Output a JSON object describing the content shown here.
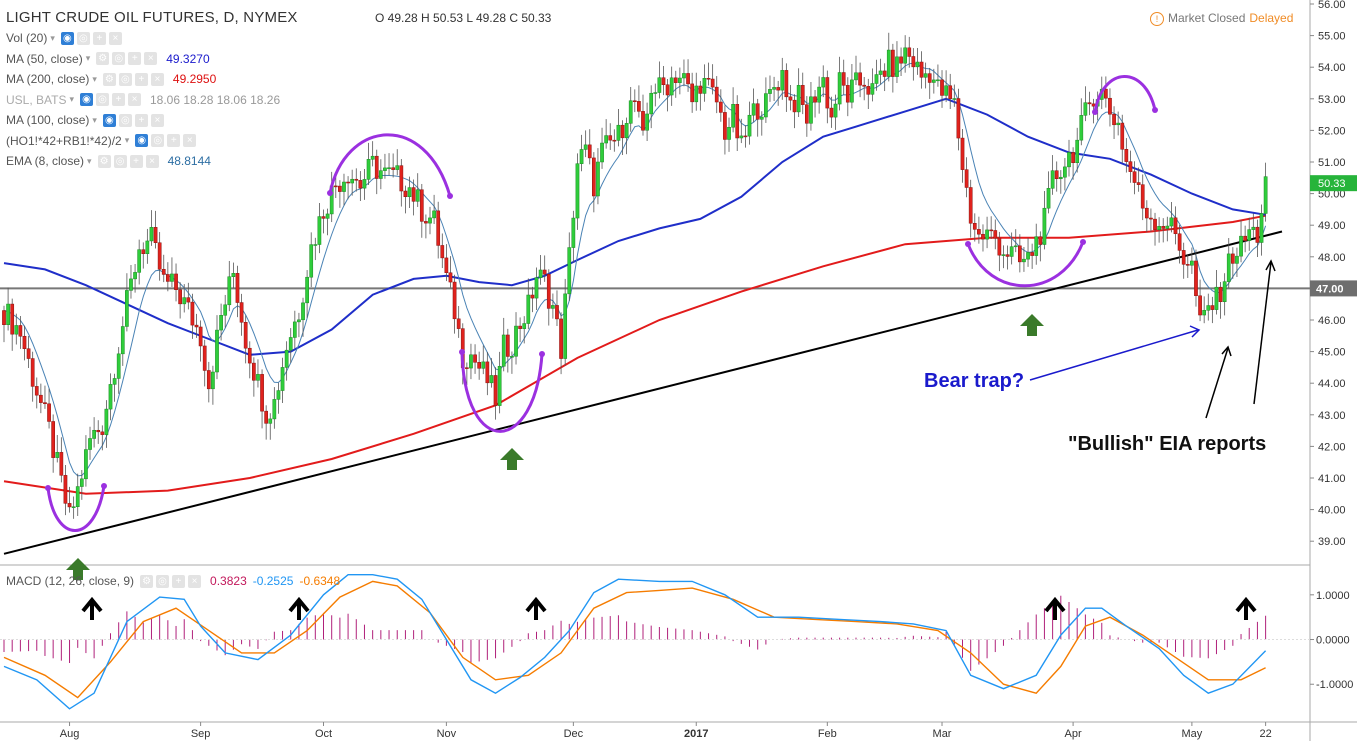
{
  "header": {
    "title": "LIGHT CRUDE OIL FUTURES, D, NYMEX",
    "ohlc": "O 49.28  H 50.53  L 49.28  C 50.33",
    "status_text": "Market Closed",
    "delayed": "Delayed"
  },
  "legend": [
    {
      "label": "Vol (20)",
      "value": "",
      "color": "#555555",
      "eye": true
    },
    {
      "label": "MA (50, close)",
      "value": "49.3270",
      "color": "#1a1acc",
      "eye": false
    },
    {
      "label": "MA (200, close)",
      "value": "49.2950",
      "color": "#dd1111",
      "eye": false
    },
    {
      "label": "USL, BATS",
      "value": "18.06 18.28 18.06 18.26",
      "color": "#999999",
      "eye": true
    },
    {
      "label": "MA (100, close)",
      "value": "",
      "color": "#555555",
      "eye": true
    },
    {
      "label": "(HO1!*42+RB1!*42)/2",
      "value": "",
      "color": "#555555",
      "eye": true
    },
    {
      "label": "EMA (8, close)",
      "value": "48.8144",
      "color": "#2d6ea3",
      "eye": false
    }
  ],
  "macd_legend": {
    "label": "MACD (12, 26, close, 9)",
    "hist": "0.3823",
    "macd": "-0.2525",
    "signal": "-0.6348"
  },
  "annotations": {
    "bear_trap": "Bear trap?",
    "eia": "\"Bullish\" EIA reports"
  },
  "chart_data": {
    "type": "candlestick",
    "title": "LIGHT CRUDE OIL FUTURES, D, NYMEX",
    "ylim": [
      38.5,
      56.0
    ],
    "y_ticks": [
      "39.00",
      "40.00",
      "41.00",
      "42.00",
      "43.00",
      "44.00",
      "45.00",
      "46.00",
      "47.00",
      "48.00",
      "49.00",
      "50.00",
      "51.00",
      "52.00",
      "53.00",
      "54.00",
      "55.00",
      "56.00"
    ],
    "y_tick_values": [
      39,
      40,
      41,
      42,
      43,
      44,
      45,
      46,
      47,
      48,
      49,
      50,
      51,
      52,
      53,
      54,
      55,
      56
    ],
    "x_ticks": [
      "Aug",
      "Sep",
      "Oct",
      "Nov",
      "Dec",
      "2017",
      "Feb",
      "Mar",
      "Apr",
      "May",
      "22"
    ],
    "x_tick_index": [
      16,
      48,
      78,
      108,
      139,
      169,
      201,
      229,
      261,
      290,
      308
    ],
    "horizontal_line": {
      "value": 47.0,
      "label": "47.00"
    },
    "last_price": {
      "value": 50.33,
      "label": "50.33"
    },
    "price_path": [
      [
        0,
        46.3
      ],
      [
        4,
        45.6
      ],
      [
        7,
        44.2
      ],
      [
        11,
        42.5
      ],
      [
        14,
        40.8
      ],
      [
        16,
        39.7
      ],
      [
        18,
        40.6
      ],
      [
        21,
        42.2
      ],
      [
        24,
        42.7
      ],
      [
        27,
        44.6
      ],
      [
        30,
        46.5
      ],
      [
        33,
        48.3
      ],
      [
        36,
        48.5
      ],
      [
        39,
        47.2
      ],
      [
        42,
        47.0
      ],
      [
        45,
        46.3
      ],
      [
        48,
        45.5
      ],
      [
        50,
        44.0
      ],
      [
        53,
        46.1
      ],
      [
        56,
        47.5
      ],
      [
        59,
        45.4
      ],
      [
        62,
        44.0
      ],
      [
        64,
        43.1
      ],
      [
        66,
        43.4
      ],
      [
        69,
        45.2
      ],
      [
        72,
        46.3
      ],
      [
        75,
        48.3
      ],
      [
        78,
        49.5
      ],
      [
        81,
        50.3
      ],
      [
        84,
        50.7
      ],
      [
        87,
        50.3
      ],
      [
        90,
        50.9
      ],
      [
        93,
        50.6
      ],
      [
        96,
        50.5
      ],
      [
        99,
        50.2
      ],
      [
        102,
        49.5
      ],
      [
        105,
        49.1
      ],
      [
        108,
        47.3
      ],
      [
        110,
        46.3
      ],
      [
        112,
        44.9
      ],
      [
        114,
        44.9
      ],
      [
        116,
        44.5
      ],
      [
        118,
        44.1
      ],
      [
        120,
        43.5
      ],
      [
        122,
        45.1
      ],
      [
        124,
        45.3
      ],
      [
        126,
        45.9
      ],
      [
        128,
        46.4
      ],
      [
        130,
        47.4
      ],
      [
        132,
        47.2
      ],
      [
        134,
        46.4
      ],
      [
        136,
        45.1
      ],
      [
        138,
        48.0
      ],
      [
        140,
        51.0
      ],
      [
        142,
        51.3
      ],
      [
        144,
        50.3
      ],
      [
        146,
        51.3
      ],
      [
        148,
        51.6
      ],
      [
        150,
        51.8
      ],
      [
        152,
        52.6
      ],
      [
        154,
        52.9
      ],
      [
        156,
        51.6
      ],
      [
        158,
        53.4
      ],
      [
        160,
        53.3
      ],
      [
        162,
        53.5
      ],
      [
        164,
        53.8
      ],
      [
        166,
        53.6
      ],
      [
        168,
        52.9
      ],
      [
        170,
        53.6
      ],
      [
        172,
        53.3
      ],
      [
        174,
        52.9
      ],
      [
        176,
        52.0
      ],
      [
        178,
        52.4
      ],
      [
        180,
        51.4
      ],
      [
        182,
        52.3
      ],
      [
        184,
        52.8
      ],
      [
        186,
        52.8
      ],
      [
        188,
        53.4
      ],
      [
        190,
        53.8
      ],
      [
        192,
        52.9
      ],
      [
        194,
        53.0
      ],
      [
        196,
        52.4
      ],
      [
        198,
        53.2
      ],
      [
        200,
        53.6
      ],
      [
        202,
        52.4
      ],
      [
        204,
        53.5
      ],
      [
        206,
        53.1
      ],
      [
        208,
        53.4
      ],
      [
        210,
        53.6
      ],
      [
        212,
        53.2
      ],
      [
        214,
        53.8
      ],
      [
        216,
        54.1
      ],
      [
        218,
        54.0
      ],
      [
        220,
        54.5
      ],
      [
        222,
        54.2
      ],
      [
        224,
        53.7
      ],
      [
        226,
        53.9
      ],
      [
        228,
        53.3
      ],
      [
        230,
        53.1
      ],
      [
        232,
        52.8
      ],
      [
        234,
        50.9
      ],
      [
        236,
        49.3
      ],
      [
        238,
        48.6
      ],
      [
        240,
        48.7
      ],
      [
        242,
        48.6
      ],
      [
        244,
        48.2
      ],
      [
        246,
        48.1
      ],
      [
        248,
        47.8
      ],
      [
        250,
        47.9
      ],
      [
        252,
        48.5
      ],
      [
        254,
        49.1
      ],
      [
        256,
        50.4
      ],
      [
        258,
        50.8
      ],
      [
        260,
        51.2
      ],
      [
        262,
        51.6
      ],
      [
        264,
        52.5
      ],
      [
        266,
        53.2
      ],
      [
        268,
        53.2
      ],
      [
        270,
        52.6
      ],
      [
        272,
        52.2
      ],
      [
        274,
        51.0
      ],
      [
        276,
        50.4
      ],
      [
        278,
        49.6
      ],
      [
        280,
        49.3
      ],
      [
        282,
        49.1
      ],
      [
        284,
        49.1
      ],
      [
        286,
        48.7
      ],
      [
        288,
        48.0
      ],
      [
        290,
        47.7
      ],
      [
        292,
        45.8
      ],
      [
        294,
        46.4
      ],
      [
        296,
        46.6
      ],
      [
        298,
        47.4
      ],
      [
        300,
        48.1
      ],
      [
        302,
        48.3
      ],
      [
        304,
        48.8
      ],
      [
        306,
        48.7
      ],
      [
        308,
        50.33
      ]
    ],
    "ma50_path": [
      [
        0,
        47.8
      ],
      [
        10,
        47.6
      ],
      [
        20,
        47.1
      ],
      [
        30,
        46.5
      ],
      [
        40,
        45.9
      ],
      [
        50,
        45.4
      ],
      [
        60,
        44.9
      ],
      [
        70,
        45.0
      ],
      [
        80,
        45.7
      ],
      [
        90,
        46.8
      ],
      [
        100,
        47.3
      ],
      [
        108,
        47.4
      ],
      [
        116,
        47.2
      ],
      [
        124,
        47.1
      ],
      [
        132,
        47.4
      ],
      [
        140,
        47.9
      ],
      [
        150,
        48.5
      ],
      [
        160,
        48.9
      ],
      [
        170,
        49.2
      ],
      [
        180,
        49.9
      ],
      [
        190,
        51.0
      ],
      [
        200,
        51.8
      ],
      [
        210,
        52.2
      ],
      [
        220,
        52.6
      ],
      [
        230,
        53.0
      ],
      [
        240,
        52.5
      ],
      [
        250,
        51.8
      ],
      [
        260,
        51.3
      ],
      [
        270,
        51.1
      ],
      [
        280,
        50.6
      ],
      [
        290,
        50.0
      ],
      [
        300,
        49.5
      ],
      [
        308,
        49.33
      ]
    ],
    "ma200_path": [
      [
        0,
        40.9
      ],
      [
        20,
        40.5
      ],
      [
        40,
        40.6
      ],
      [
        60,
        41.0
      ],
      [
        80,
        41.6
      ],
      [
        100,
        42.4
      ],
      [
        120,
        43.3
      ],
      [
        140,
        44.8
      ],
      [
        160,
        46.0
      ],
      [
        180,
        46.9
      ],
      [
        200,
        47.7
      ],
      [
        220,
        48.4
      ],
      [
        240,
        48.6
      ],
      [
        260,
        48.6
      ],
      [
        280,
        48.8
      ],
      [
        300,
        49.1
      ],
      [
        308,
        49.3
      ]
    ],
    "trendline": {
      "from": [
        0,
        38.6
      ],
      "to": [
        312,
        48.8
      ]
    },
    "macd": {
      "ylim": [
        -1.8,
        1.6
      ],
      "y_ticks": [
        "1.0000",
        "0.0000",
        "-1.0000"
      ],
      "y_tick_values": [
        1.0,
        0.0,
        -1.0
      ],
      "macd_path": [
        [
          0,
          -0.6
        ],
        [
          8,
          -0.9
        ],
        [
          16,
          -1.55
        ],
        [
          22,
          -1.2
        ],
        [
          30,
          0.4
        ],
        [
          38,
          0.95
        ],
        [
          44,
          0.9
        ],
        [
          48,
          0.3
        ],
        [
          54,
          -0.3
        ],
        [
          62,
          -0.45
        ],
        [
          70,
          0.1
        ],
        [
          78,
          1.0
        ],
        [
          84,
          1.45
        ],
        [
          90,
          1.45
        ],
        [
          96,
          1.35
        ],
        [
          102,
          0.9
        ],
        [
          108,
          0.0
        ],
        [
          114,
          -0.9
        ],
        [
          120,
          -1.2
        ],
        [
          126,
          -0.85
        ],
        [
          132,
          -0.4
        ],
        [
          138,
          0.2
        ],
        [
          144,
          1.05
        ],
        [
          150,
          1.35
        ],
        [
          160,
          1.3
        ],
        [
          168,
          1.3
        ],
        [
          176,
          1.0
        ],
        [
          184,
          0.5
        ],
        [
          194,
          0.5
        ],
        [
          204,
          0.45
        ],
        [
          214,
          0.4
        ],
        [
          222,
          0.35
        ],
        [
          230,
          0.2
        ],
        [
          236,
          -0.8
        ],
        [
          244,
          -1.1
        ],
        [
          252,
          -0.8
        ],
        [
          258,
          0.1
        ],
        [
          264,
          0.7
        ],
        [
          268,
          0.7
        ],
        [
          274,
          0.3
        ],
        [
          282,
          -0.2
        ],
        [
          288,
          -0.8
        ],
        [
          294,
          -1.2
        ],
        [
          300,
          -1.0
        ],
        [
          308,
          -0.25
        ]
      ],
      "signal_path": [
        [
          0,
          -0.4
        ],
        [
          10,
          -0.8
        ],
        [
          18,
          -1.3
        ],
        [
          26,
          -0.5
        ],
        [
          34,
          0.4
        ],
        [
          42,
          0.7
        ],
        [
          50,
          0.2
        ],
        [
          58,
          -0.3
        ],
        [
          66,
          -0.3
        ],
        [
          74,
          0.2
        ],
        [
          82,
          0.95
        ],
        [
          90,
          1.3
        ],
        [
          96,
          1.2
        ],
        [
          104,
          0.6
        ],
        [
          112,
          -0.4
        ],
        [
          120,
          -0.9
        ],
        [
          128,
          -0.8
        ],
        [
          136,
          -0.3
        ],
        [
          144,
          0.7
        ],
        [
          152,
          1.05
        ],
        [
          160,
          1.1
        ],
        [
          168,
          1.15
        ],
        [
          178,
          0.9
        ],
        [
          188,
          0.5
        ],
        [
          198,
          0.45
        ],
        [
          208,
          0.4
        ],
        [
          218,
          0.35
        ],
        [
          228,
          0.2
        ],
        [
          236,
          -0.3
        ],
        [
          244,
          -1.0
        ],
        [
          252,
          -1.2
        ],
        [
          258,
          -0.6
        ],
        [
          264,
          0.3
        ],
        [
          270,
          0.5
        ],
        [
          278,
          0.1
        ],
        [
          286,
          -0.4
        ],
        [
          294,
          -0.9
        ],
        [
          302,
          -0.9
        ],
        [
          308,
          -0.63
        ]
      ]
    }
  }
}
